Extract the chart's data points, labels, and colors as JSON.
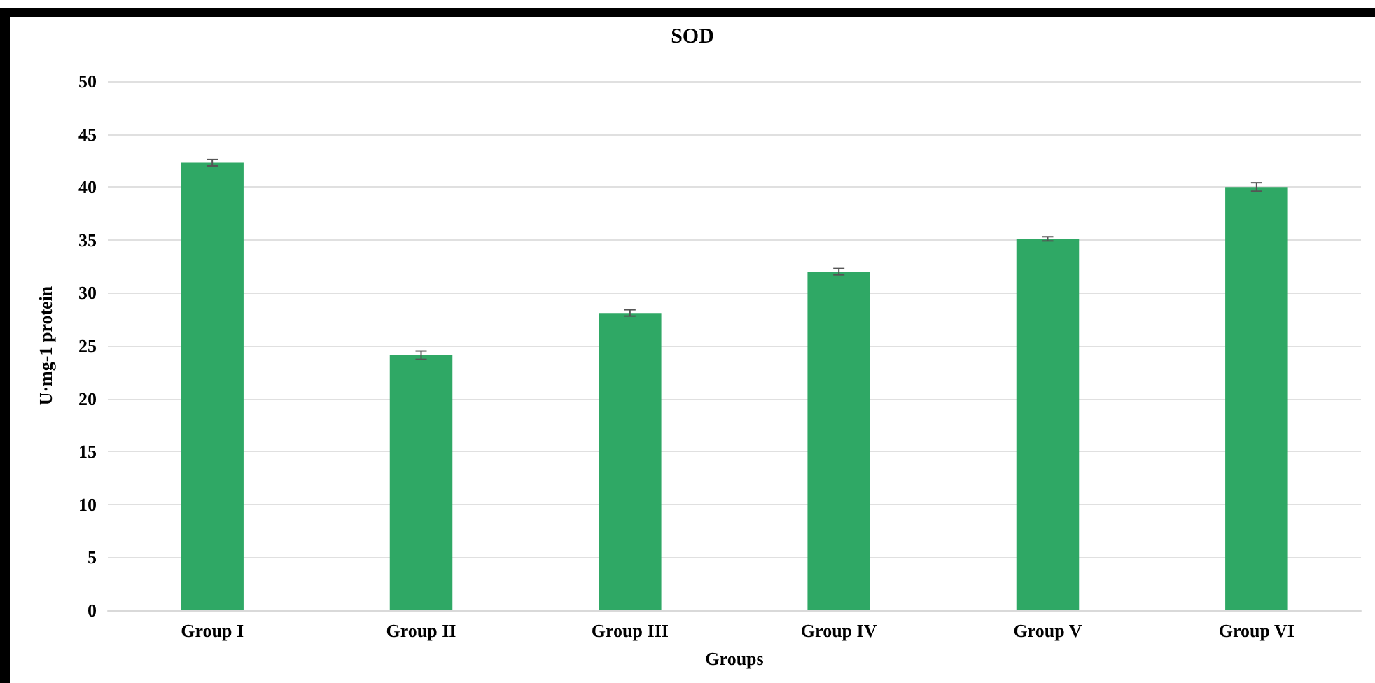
{
  "chart_data": {
    "type": "bar",
    "title": "SOD",
    "xlabel": "Groups",
    "ylabel": "U·mg-1 protein",
    "categories": [
      "Group I",
      "Group II",
      "Group III",
      "Group IV",
      "Group V",
      "Group VI"
    ],
    "values": [
      42.3,
      24.1,
      28.1,
      32.0,
      35.1,
      40.0
    ],
    "errors": [
      0.3,
      0.4,
      0.3,
      0.3,
      0.2,
      0.4
    ],
    "color": "#2fa865",
    "ylim": [
      0,
      50
    ],
    "yticks": [
      0,
      5,
      10,
      15,
      20,
      25,
      30,
      35,
      40,
      45,
      50
    ],
    "grid": "y"
  }
}
